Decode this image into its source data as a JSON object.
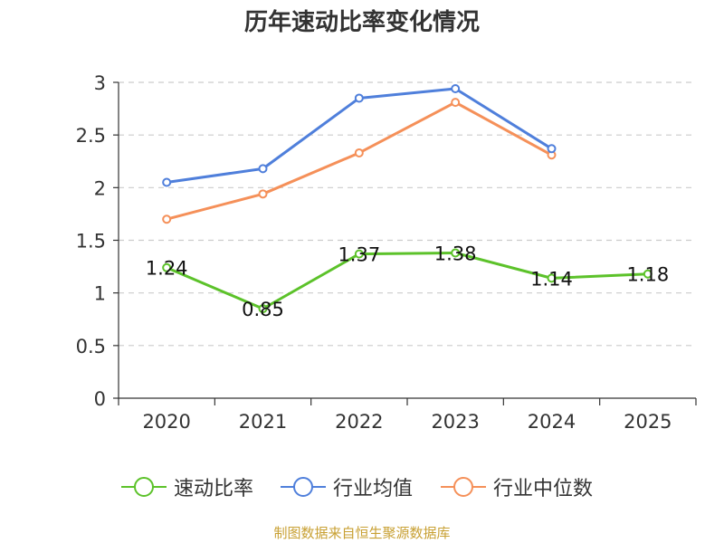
{
  "chart_data": {
    "type": "line",
    "title": "历年速动比率变化情况",
    "categories": [
      "2020",
      "2021",
      "2022",
      "2023",
      "2024",
      "2025"
    ],
    "ylim": [
      0,
      3
    ],
    "yticks": [
      0,
      0.5,
      1,
      1.5,
      2,
      2.5,
      3
    ],
    "ytick_labels": [
      "0",
      "0.5",
      "1",
      "1.5",
      "2",
      "2.5",
      "3"
    ],
    "grid": true,
    "legend_position": "bottom",
    "series": [
      {
        "name": "速动比率",
        "color": "#5cc22a",
        "values": [
          1.24,
          0.85,
          1.37,
          1.38,
          1.14,
          1.18
        ],
        "data_labels": [
          "1.24",
          "0.85",
          "1.37",
          "1.38",
          "1.14",
          "1.18"
        ],
        "show_labels": true
      },
      {
        "name": "行业均值",
        "color": "#4f7fdb",
        "values": [
          2.05,
          2.18,
          2.85,
          2.94,
          2.37,
          null
        ],
        "show_labels": false
      },
      {
        "name": "行业中位数",
        "color": "#f59059",
        "values": [
          1.7,
          1.94,
          2.33,
          2.81,
          2.31,
          null
        ],
        "show_labels": false
      }
    ]
  },
  "footer": {
    "source": "制图数据来自恒生聚源数据库"
  }
}
